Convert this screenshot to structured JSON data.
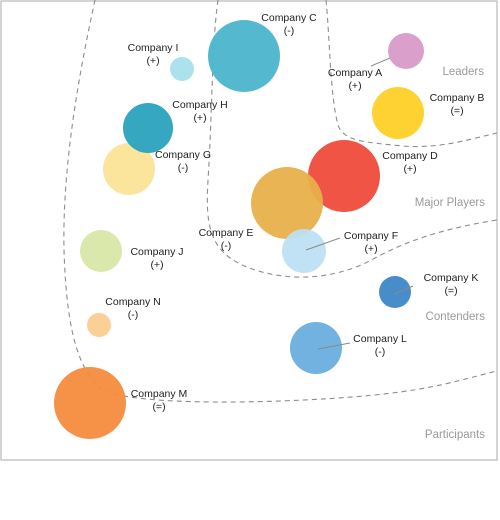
{
  "chart_data": {
    "type": "bubble",
    "title": "",
    "zones": [
      {
        "name": "Leaders",
        "color": "#a6a6a6"
      },
      {
        "name": "Major Players",
        "color": "#a6a6a6"
      },
      {
        "name": "Contenders",
        "color": "#a6a6a6"
      },
      {
        "name": "Participants",
        "color": "#a6a6a6"
      }
    ],
    "bubbles": [
      {
        "name": "Company A",
        "trend": "(+)",
        "color": "#d89bc8"
      },
      {
        "name": "Company B",
        "trend": "(=)",
        "color": "#fdd026"
      },
      {
        "name": "Company C",
        "trend": "(-)",
        "color": "#4bb5cc"
      },
      {
        "name": "Company D",
        "trend": "(+)",
        "color": "#ee4b3b"
      },
      {
        "name": "Company E",
        "trend": "(-)",
        "color": "#e8b04a"
      },
      {
        "name": "Company F",
        "trend": "(+)",
        "color": "#bedff4"
      },
      {
        "name": "Company G",
        "trend": "(-)",
        "color": "#fbe397"
      },
      {
        "name": "Company H",
        "trend": "(+)",
        "color": "#2aa2bd"
      },
      {
        "name": "Company I",
        "trend": "(+)",
        "color": "#a7e0ea"
      },
      {
        "name": "Company J",
        "trend": "(+)",
        "color": "#d8e7a6"
      },
      {
        "name": "Company K",
        "trend": "(=)",
        "color": "#3d87c6"
      },
      {
        "name": "Company L",
        "trend": "(-)",
        "color": "#6aaedf"
      },
      {
        "name": "Company M",
        "trend": "(=)",
        "color": "#f48c3e"
      },
      {
        "name": "Company N",
        "trend": "(-)",
        "color": "#fbcd90"
      }
    ]
  }
}
